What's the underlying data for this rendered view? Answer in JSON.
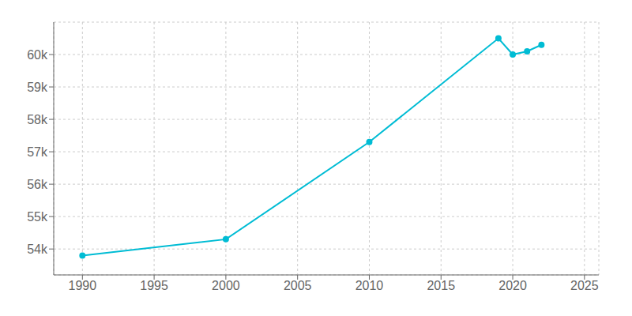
{
  "chart_data": {
    "type": "line",
    "x": [
      1990,
      2000,
      2010,
      2019,
      2020,
      2021,
      2022
    ],
    "values": [
      53800,
      54300,
      57300,
      60500,
      60000,
      60100,
      60300
    ],
    "color": "#00BCD4",
    "marker": "circle",
    "xlim": [
      1988,
      2026
    ],
    "ylim": [
      53200,
      61000
    ],
    "xticks": [
      1990,
      1995,
      2000,
      2005,
      2010,
      2015,
      2020,
      2025
    ],
    "yticks": [
      {
        "value": 54000,
        "label": "54k"
      },
      {
        "value": 55000,
        "label": "55k"
      },
      {
        "value": 56000,
        "label": "56k"
      },
      {
        "value": 57000,
        "label": "57k"
      },
      {
        "value": 58000,
        "label": "58k"
      },
      {
        "value": 59000,
        "label": "59k"
      },
      {
        "value": 60000,
        "label": "60k"
      }
    ],
    "grid": true
  }
}
